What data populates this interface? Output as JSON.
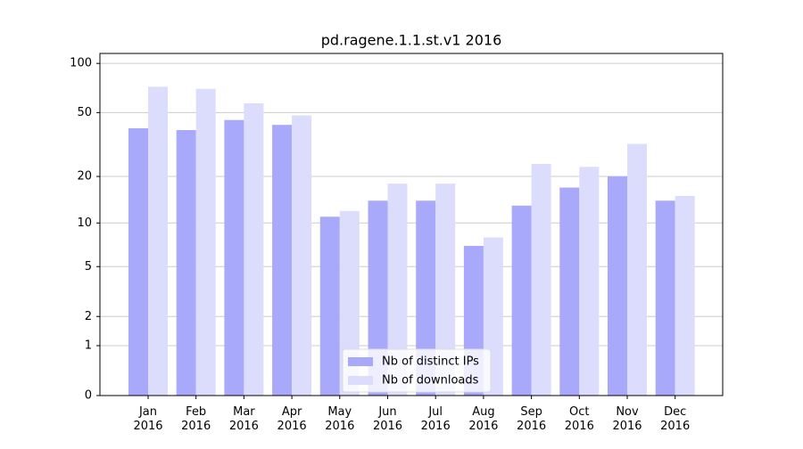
{
  "chart_data": {
    "type": "bar",
    "title": "pd.ragene.1.1.st.v1 2016",
    "categories": [
      "Jan\n2016",
      "Feb\n2016",
      "Mar\n2016",
      "Apr\n2016",
      "May\n2016",
      "Jun\n2016",
      "Jul\n2016",
      "Aug\n2016",
      "Sep\n2016",
      "Oct\n2016",
      "Nov\n2016",
      "Dec\n2016"
    ],
    "series": [
      {
        "name": "Nb of distinct IPs",
        "color": "#a9a9fb",
        "values": [
          40,
          39,
          45,
          42,
          11,
          14,
          14,
          7,
          13,
          17,
          20,
          14
        ]
      },
      {
        "name": "Nb of downloads",
        "color": "#dcdcfd",
        "values": [
          72,
          70,
          57,
          48,
          12,
          18,
          18,
          8,
          24,
          23,
          32,
          15
        ]
      }
    ],
    "yscale": "log1p",
    "ylim": [
      0,
      115
    ],
    "yticks": [
      0,
      1,
      2,
      5,
      10,
      20,
      50,
      100
    ],
    "grid": true,
    "legend": "lower center"
  }
}
